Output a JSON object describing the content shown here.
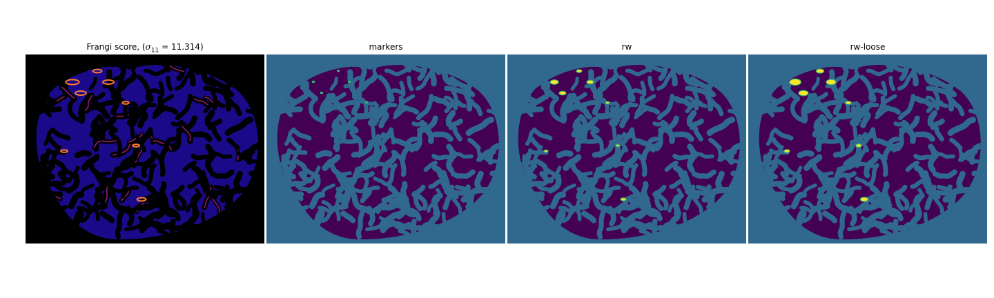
{
  "panels": [
    {
      "title_prefix": "Frangi score, (",
      "title_sym": "σ",
      "title_sub": "11",
      "title_rest": " = 11.314)"
    },
    {
      "title": "markers"
    },
    {
      "title": "rw"
    },
    {
      "title": "rw-loose"
    }
  ],
  "colors": {
    "frangi_bg": "#000000",
    "frangi_tissue": "#1a0a8a",
    "frangi_bright": "#ff7a30",
    "frangi_mid": "#b0208c",
    "label_bg": "#31688e",
    "label_vessel": "#440154",
    "label_marker": "#35b779",
    "label_yellow": "#fde725"
  }
}
